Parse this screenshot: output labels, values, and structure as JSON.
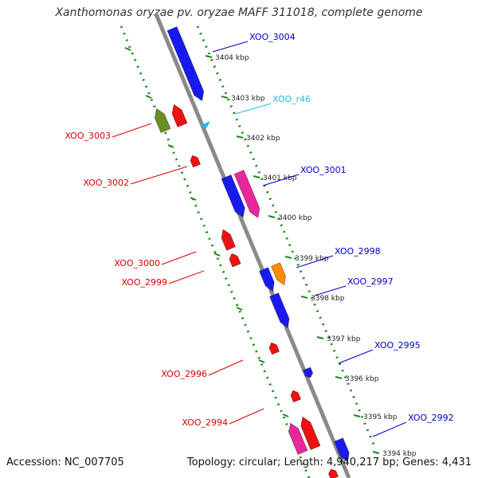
{
  "title": "Xanthomonas oryzae pv. oryzae MAFF 311018, complete genome",
  "footer": {
    "accession": "Accession: NC_007705",
    "topology": "Topology: circular; Length: 4,940,217 bp; Genes: 4,431"
  },
  "colors": {
    "forward_label": "#0000cc",
    "reverse_label": "#dd0000",
    "rna_label": "#22bbee",
    "axis": "#8a8a8a",
    "ticks": "#1a8a1a"
  },
  "kbp_ticks": [
    "3404 kbp",
    "3403 kbp",
    "3402 kbp",
    "3401 kbp",
    "3400 kbp",
    "3399 kbp",
    "3398 kbp",
    "3397 kbp",
    "3396 kbp",
    "3395 kbp",
    "3394 kbp"
  ],
  "gene_labels": [
    {
      "text": "XOO_3004",
      "strand": "forward"
    },
    {
      "text": "XOO_r46",
      "strand": "rna"
    },
    {
      "text": "XOO_3003",
      "strand": "reverse"
    },
    {
      "text": "XOO_3002",
      "strand": "reverse"
    },
    {
      "text": "XOO_3001",
      "strand": "forward"
    },
    {
      "text": "XOO_2998",
      "strand": "forward"
    },
    {
      "text": "XOO_3000",
      "strand": "reverse"
    },
    {
      "text": "XOO_2999",
      "strand": "reverse"
    },
    {
      "text": "XOO_2997",
      "strand": "forward"
    },
    {
      "text": "XOO_2995",
      "strand": "forward"
    },
    {
      "text": "XOO_2996",
      "strand": "reverse"
    },
    {
      "text": "XOO_2994",
      "strand": "reverse"
    },
    {
      "text": "XOO_2992",
      "strand": "forward"
    }
  ]
}
